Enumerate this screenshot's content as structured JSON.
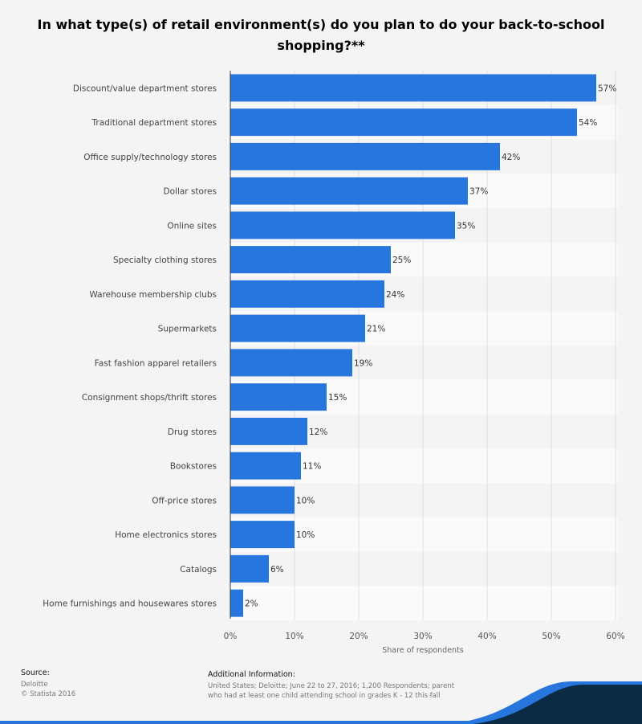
{
  "chart_data": {
    "type": "bar",
    "orientation": "horizontal",
    "title": "In what type(s) of retail environment(s) do you plan to do your back-to-school shopping?**",
    "xlabel": "Share of respondents",
    "ylabel": "",
    "xlim": [
      0,
      60
    ],
    "xticks": [
      "0%",
      "10%",
      "20%",
      "30%",
      "40%",
      "50%",
      "60%"
    ],
    "grid": true,
    "bar_color": "#2776dd",
    "categories": [
      "Discount/value department stores",
      "Traditional department stores",
      "Office supply/technology stores",
      "Dollar stores",
      "Online sites",
      "Specialty clothing stores",
      "Warehouse membership clubs",
      "Supermarkets",
      "Fast fashion apparel retailers",
      "Consignment shops/thrift stores",
      "Drug stores",
      "Bookstores",
      "Off-price stores",
      "Home electronics stores",
      "Catalogs",
      "Home furnishings and housewares stores"
    ],
    "values": [
      57,
      54,
      42,
      37,
      35,
      25,
      24,
      21,
      19,
      15,
      12,
      11,
      10,
      10,
      6,
      2
    ],
    "value_labels": [
      "57%",
      "54%",
      "42%",
      "37%",
      "35%",
      "25%",
      "24%",
      "21%",
      "19%",
      "15%",
      "12%",
      "11%",
      "10%",
      "10%",
      "6%",
      "2%"
    ]
  },
  "footer": {
    "source_label": "Source:",
    "source_name": "Deloitte",
    "copyright": "© Statista 2016",
    "info_label": "Additional Information:",
    "info_line1": "United States; Deloitte; June 22 to 27, 2016; 1,200 Respondents; parent",
    "info_line2": "who had at least one child attending school in grades K - 12 this fall"
  },
  "colors": {
    "accent": "#2776dd",
    "dark_navy": "#0b2a43"
  }
}
